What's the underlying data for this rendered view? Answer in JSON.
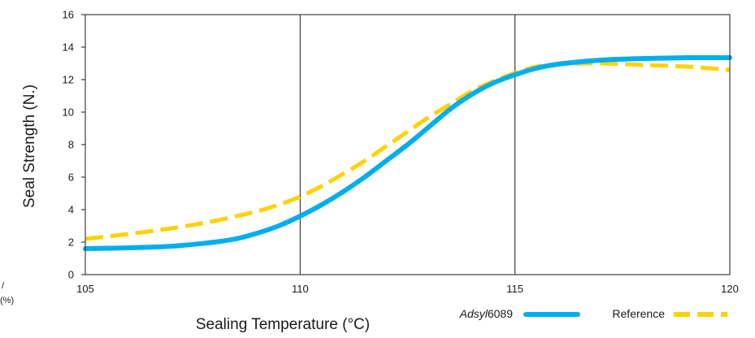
{
  "chart_data": {
    "type": "line",
    "title": "",
    "xlabel": "Sealing Temperature (°C)",
    "ylabel": "Seal Strength (N.)",
    "xlim": [
      105,
      120
    ],
    "ylim": [
      0,
      16
    ],
    "x_ticks": [
      "105",
      "110",
      "115",
      "120"
    ],
    "y_ticks": [
      "0",
      "2",
      "4",
      "6",
      "8",
      "10",
      "12",
      "14",
      "16"
    ],
    "grid": "vertical-major",
    "legend_position": "bottom-right",
    "series": [
      {
        "name_prefix": "Adsyl",
        "name_suffix": "6089",
        "color": "#00aeef",
        "style": "solid",
        "x": [
          105,
          106,
          107,
          108,
          108.5,
          109,
          109.5,
          110,
          110.5,
          111,
          111.5,
          112,
          112.5,
          113,
          113.5,
          114,
          114.5,
          115,
          115.5,
          116,
          117,
          118,
          119,
          120
        ],
        "y": [
          1.6,
          1.65,
          1.75,
          2.0,
          2.2,
          2.55,
          3.0,
          3.6,
          4.3,
          5.1,
          6.0,
          7.0,
          8.0,
          9.1,
          10.2,
          11.1,
          11.8,
          12.3,
          12.7,
          12.95,
          13.2,
          13.3,
          13.35,
          13.35
        ]
      },
      {
        "name": "Reference",
        "color": "#ffd200",
        "style": "dashed",
        "x": [
          105,
          106,
          107,
          108,
          109,
          109.5,
          110,
          110.5,
          111,
          111.5,
          112,
          112.5,
          113,
          113.5,
          114,
          114.5,
          115,
          115.5,
          116,
          117,
          118,
          119,
          120
        ],
        "y": [
          2.2,
          2.5,
          2.85,
          3.3,
          3.9,
          4.3,
          4.8,
          5.45,
          6.2,
          7.0,
          7.9,
          8.8,
          9.7,
          10.5,
          11.3,
          11.9,
          12.4,
          12.8,
          12.95,
          13.0,
          12.9,
          12.8,
          12.6
        ]
      }
    ]
  },
  "fragments": {
    "left_edge_symbol": "/",
    "left_edge_unit": "(%)"
  }
}
